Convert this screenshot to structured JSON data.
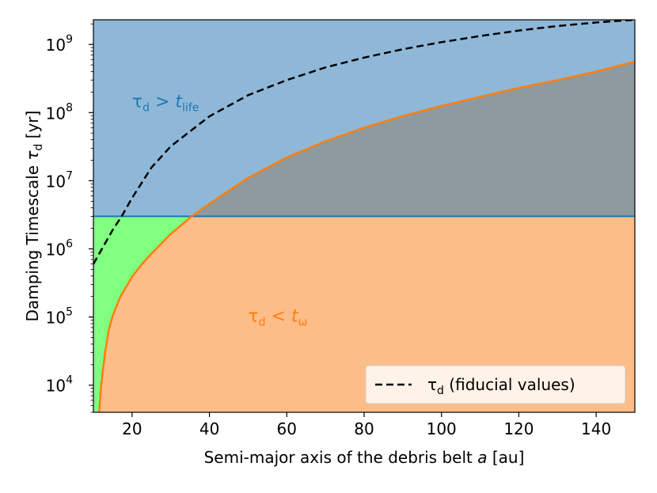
{
  "chart_data": {
    "type": "area",
    "xlabel": {
      "prefix": "Semi-major axis of the debris belt ",
      "var": "a",
      "suffix": " [au]"
    },
    "ylabel": {
      "prefix": "Damping Timescale ",
      "var": "τ",
      "sub": "d",
      "suffix": " [yr]"
    },
    "xlim": [
      10,
      150
    ],
    "ylim": [
      4000,
      2300000000
    ],
    "yscale": "log",
    "x_ticks": [
      20,
      40,
      60,
      80,
      100,
      120,
      140
    ],
    "y_ticks": [
      {
        "value": 10000,
        "base": "10",
        "exp": "4"
      },
      {
        "value": 100000,
        "base": "10",
        "exp": "5"
      },
      {
        "value": 1000000,
        "base": "10",
        "exp": "6"
      },
      {
        "value": 10000000,
        "base": "10",
        "exp": "7"
      },
      {
        "value": 100000000,
        "base": "10",
        "exp": "8"
      },
      {
        "value": 1000000000,
        "base": "10",
        "exp": "9"
      }
    ],
    "grid": false,
    "t_life": 3000000,
    "series": [
      {
        "name": "τ_d (fiducial values)",
        "style": "dashed",
        "color": "#000000",
        "x": [
          10,
          15,
          17.3,
          20,
          25,
          30,
          40,
          50,
          60,
          70,
          80,
          90,
          100,
          110,
          120,
          130,
          140,
          150
        ],
        "y": [
          600000,
          1900000,
          3000000,
          5600000,
          15600000,
          32000000,
          88000000,
          180000000,
          300000000,
          460000000,
          640000000,
          850000000,
          1080000000,
          1330000000,
          1600000000,
          1860000000,
          2100000000,
          2300000000
        ]
      },
      {
        "name": "t_omega",
        "style": "solid",
        "color": "#ff7f0e",
        "x": [
          11.5,
          12,
          13,
          14,
          15,
          17,
          20,
          23,
          25,
          30,
          35.4,
          40,
          50,
          60,
          70,
          80,
          90,
          100,
          110,
          120,
          130,
          140,
          150
        ],
        "y": [
          4000,
          10000,
          30000,
          65000,
          105000,
          200000,
          390000,
          640000,
          850000,
          1650000,
          3000000,
          4600000,
          11000000,
          22000000,
          38000000,
          60000000,
          89000000,
          125000000,
          170000000,
          230000000,
          300000000,
          400000000,
          560000000
        ]
      }
    ],
    "regions": [
      {
        "name": "tau_gt_tlife",
        "color": "#8fb8d8"
      },
      {
        "name": "tau_lt_tomega",
        "color": "#fdbd88"
      },
      {
        "name": "overlap",
        "color": "#8e9a9e"
      },
      {
        "name": "allowed",
        "color": "#80ff80"
      }
    ],
    "annotations": [
      {
        "id": "tau-gt-tlife",
        "color": "#1f77b4",
        "tau": "τ",
        "tau_sub": "d",
        "op": " > ",
        "t": "t",
        "t_sub": "life",
        "x": 20,
        "y": 120000000
      },
      {
        "id": "tau-lt-tomega",
        "color": "#ff7f0e",
        "tau": "τ",
        "tau_sub": "d",
        "op": " < ",
        "t": "t",
        "t_sub": "ω",
        "x": 50,
        "y": 85000
      }
    ],
    "legend": {
      "placement": "lower-right",
      "tau": "τ",
      "sub": "d",
      "text": " (fiducial values)"
    }
  }
}
